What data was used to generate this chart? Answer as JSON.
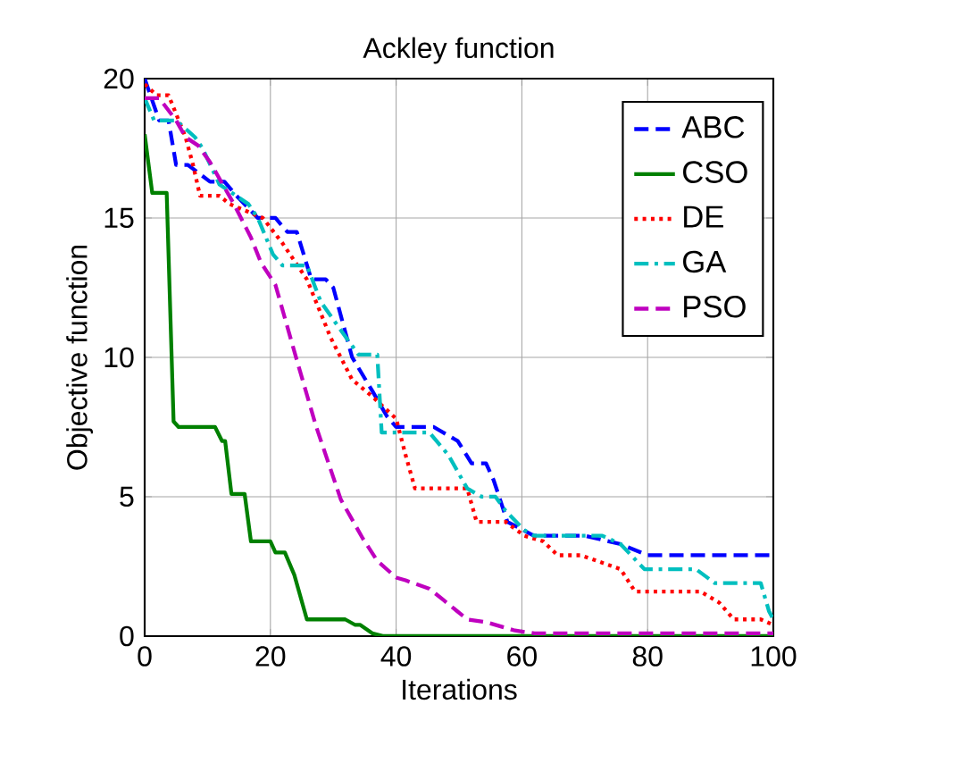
{
  "chart_data": {
    "type": "line",
    "title": "Ackley function",
    "xlabel": "Iterations",
    "ylabel": "Objective function",
    "xlim": [
      0,
      100
    ],
    "ylim": [
      0,
      20
    ],
    "xticks": [
      0,
      20,
      40,
      60,
      80,
      100
    ],
    "yticks": [
      0,
      5,
      10,
      15,
      20
    ],
    "grid": true,
    "legend": "top right",
    "series": [
      {
        "name": "ABC",
        "color": "#0000ff",
        "line_style": "dashed",
        "x": [
          0,
          2.3,
          3.8,
          5,
          6.9,
          10.4,
          12.7,
          14.6,
          18,
          20.8,
          22.7,
          24.2,
          26.5,
          28.8,
          30,
          33,
          36.2,
          38.5,
          40,
          46,
          49.8,
          52,
          54.3,
          55.5,
          57.7,
          61.9,
          70,
          75.7,
          80,
          100
        ],
        "values": [
          20,
          18.5,
          18.5,
          16.9,
          16.9,
          16.3,
          16.3,
          15.8,
          15,
          15,
          14.5,
          14.5,
          12.8,
          12.8,
          12.5,
          10,
          8.8,
          7.9,
          7.5,
          7.5,
          7,
          6.2,
          6.2,
          5.6,
          4.1,
          3.6,
          3.6,
          3.3,
          2.9,
          2.9
        ]
      },
      {
        "name": "CSO",
        "color": "#008000",
        "line_style": "solid",
        "x": [
          0,
          1.2,
          3.5,
          4.6,
          5.4,
          11.2,
          12.3,
          12.8,
          13.8,
          15.9,
          16.9,
          20,
          20.8,
          22.3,
          23.8,
          25.8,
          31.9,
          33.5,
          34.3,
          36.2,
          38,
          100
        ],
        "values": [
          18,
          15.9,
          15.9,
          7.7,
          7.5,
          7.5,
          7,
          7,
          5.1,
          5.1,
          3.4,
          3.4,
          3,
          3,
          2.2,
          0.6,
          0.6,
          0.4,
          0.4,
          0.1,
          0,
          0
        ]
      },
      {
        "name": "DE",
        "color": "#ff0000",
        "line_style": "dotted",
        "x": [
          0,
          1.9,
          3.8,
          6.5,
          7.7,
          8.8,
          11.9,
          13.5,
          18.8,
          21.9,
          25.8,
          29.6,
          33,
          36.2,
          40,
          41.5,
          43,
          51.3,
          52.8,
          57.4,
          60.4,
          63.4,
          65.7,
          69.4,
          75.7,
          78,
          88.4,
          91.4,
          93.7,
          98,
          100
        ],
        "values": [
          19.8,
          19.4,
          19.4,
          17.9,
          16.9,
          15.8,
          15.8,
          15.5,
          15,
          14.1,
          12.8,
          10.7,
          9.2,
          8.6,
          7.8,
          6.5,
          5.3,
          5.3,
          4.1,
          4.1,
          3.6,
          3.4,
          2.9,
          2.9,
          2.4,
          1.6,
          1.6,
          1.2,
          0.6,
          0.6,
          0.4
        ]
      },
      {
        "name": "GA",
        "color": "#00bfbf",
        "line_style": "dashdot",
        "x": [
          0,
          1.5,
          5,
          8,
          9.2,
          11.9,
          16.5,
          18,
          20.4,
          21.9,
          25.8,
          28,
          30.8,
          34,
          37,
          37.7,
          45.3,
          48.3,
          51.3,
          53.6,
          55.8,
          57.4,
          60.4,
          62,
          72.8,
          75.7,
          79.5,
          87.7,
          90.7,
          98,
          99.3,
          100
        ],
        "values": [
          19.3,
          18.5,
          18.5,
          17.9,
          17.5,
          16.2,
          15.5,
          15,
          13.7,
          13.3,
          13.3,
          12,
          11.1,
          10.1,
          10.1,
          7.3,
          7.3,
          6.5,
          5.3,
          5,
          5,
          4.5,
          3.8,
          3.6,
          3.6,
          3.3,
          2.4,
          2.4,
          1.9,
          1.9,
          0.9,
          0.6
        ]
      },
      {
        "name": "PSO",
        "color": "#bf00bf",
        "line_style": "dashed",
        "x": [
          0,
          2.3,
          5,
          6.5,
          8.5,
          10.4,
          14.2,
          16.9,
          18.5,
          20.8,
          24.2,
          27.3,
          31.2,
          34.7,
          37,
          40,
          41.5,
          45.3,
          47.5,
          51.3,
          54.3,
          58.9,
          62,
          100
        ],
        "values": [
          19.3,
          19.3,
          18.5,
          17.9,
          17.6,
          17,
          15.5,
          14.3,
          13.4,
          12.6,
          9.9,
          7.5,
          4.9,
          3.5,
          2.7,
          2.1,
          2,
          1.7,
          1.3,
          0.6,
          0.5,
          0.2,
          0.1,
          0.1
        ]
      }
    ]
  }
}
